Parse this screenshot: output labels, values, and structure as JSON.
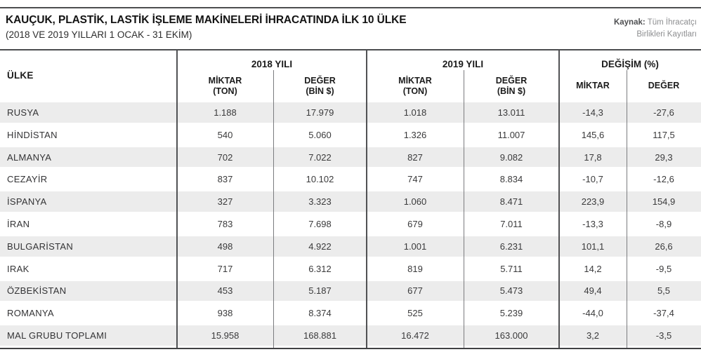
{
  "page": {
    "title": "KAUÇUK, PLASTİK, LASTİK İŞLEME MAKİNELERİ İHRACATINDA İLK 10 ÜLKE",
    "subtitle": "(2018 VE 2019 YILLARI 1 OCAK - 31 EKİM)",
    "source_label": "Kaynak:",
    "source_line1": " Tüm İhracatçı",
    "source_line2": "Birlikleri Kayıtları"
  },
  "colors": {
    "rule_dark": "#4c4d4f",
    "divider_long": "#515254",
    "divider_short": "#7b7c7f",
    "row_stripe": "#ececec",
    "text_dark": "#1b1b1b",
    "text_body": "#3a3a3b",
    "source_gray": "#8d8e90"
  },
  "table": {
    "country_header": "ÜLKE",
    "groups": [
      {
        "label": "2018 YILI",
        "sub1": {
          "l1": "MİKTAR",
          "l2": "(TON)"
        },
        "sub2": {
          "l1": "DEĞER",
          "l2": "(BİN $)"
        }
      },
      {
        "label": "2019 YILI",
        "sub1": {
          "l1": "MİKTAR",
          "l2": "(TON)"
        },
        "sub2": {
          "l1": "DEĞER",
          "l2": "(BİN $)"
        }
      },
      {
        "label": "DEĞİŞİM (%)",
        "sub1": {
          "l1": "MİKTAR",
          "l2": ""
        },
        "sub2": {
          "l1": "DEĞER",
          "l2": ""
        }
      }
    ],
    "rows": [
      {
        "country": "RUSYA",
        "values": [
          "1.188",
          "17.979",
          "1.018",
          "13.011",
          "-14,3",
          "-27,6"
        ]
      },
      {
        "country": "HİNDİSTAN",
        "values": [
          "540",
          "5.060",
          "1.326",
          "11.007",
          "145,6",
          "117,5"
        ]
      },
      {
        "country": "ALMANYA",
        "values": [
          "702",
          "7.022",
          "827",
          "9.082",
          "17,8",
          "29,3"
        ]
      },
      {
        "country": "CEZAYİR",
        "values": [
          "837",
          "10.102",
          "747",
          "8.834",
          "-10,7",
          "-12,6"
        ]
      },
      {
        "country": "İSPANYA",
        "values": [
          "327",
          "3.323",
          "1.060",
          "8.471",
          "223,9",
          "154,9"
        ]
      },
      {
        "country": "İRAN",
        "values": [
          "783",
          "7.698",
          "679",
          "7.011",
          "-13,3",
          "-8,9"
        ]
      },
      {
        "country": "BULGARİSTAN",
        "values": [
          "498",
          "4.922",
          "1.001",
          "6.231",
          "101,1",
          "26,6"
        ]
      },
      {
        "country": "IRAK",
        "values": [
          "717",
          "6.312",
          "819",
          "5.711",
          "14,2",
          "-9,5"
        ]
      },
      {
        "country": "ÖZBEKİSTAN",
        "values": [
          "453",
          "5.187",
          "677",
          "5.473",
          "49,4",
          "5,5"
        ]
      },
      {
        "country": "ROMANYA",
        "values": [
          "938",
          "8.374",
          "525",
          "5.239",
          "-44,0",
          "-37,4"
        ]
      },
      {
        "country": "MAL GRUBU TOPLAMI",
        "values": [
          "15.958",
          "168.881",
          "16.472",
          "163.000",
          "3,2",
          "-3,5"
        ]
      }
    ]
  },
  "chart_data": {
    "type": "table",
    "title": "KAUÇUK, PLASTİK, LASTİK İŞLEME MAKİNELERİ İHRACATINDA İLK 10 ÜLKE (2018 VE 2019 YILLARI 1 OCAK - 31 EKİM)",
    "columns": [
      "ÜLKE",
      "2018 MİKTAR (TON)",
      "2018 DEĞER (BİN $)",
      "2019 MİKTAR (TON)",
      "2019 DEĞER (BİN $)",
      "DEĞİŞİM MİKTAR (%)",
      "DEĞİŞİM DEĞER (%)"
    ],
    "rows": [
      [
        "RUSYA",
        1188,
        17979,
        1018,
        13011,
        -14.3,
        -27.6
      ],
      [
        "HİNDİSTAN",
        540,
        5060,
        1326,
        11007,
        145.6,
        117.5
      ],
      [
        "ALMANYA",
        702,
        7022,
        827,
        9082,
        17.8,
        29.3
      ],
      [
        "CEZAYİR",
        837,
        10102,
        747,
        8834,
        -10.7,
        -12.6
      ],
      [
        "İSPANYA",
        327,
        3323,
        1060,
        8471,
        223.9,
        154.9
      ],
      [
        "İRAN",
        783,
        7698,
        679,
        7011,
        -13.3,
        -8.9
      ],
      [
        "BULGARİSTAN",
        498,
        4922,
        1001,
        6231,
        101.1,
        26.6
      ],
      [
        "IRAK",
        717,
        6312,
        819,
        5711,
        14.2,
        -9.5
      ],
      [
        "ÖZBEKİSTAN",
        453,
        5187,
        677,
        5473,
        49.4,
        5.5
      ],
      [
        "ROMANYA",
        938,
        8374,
        525,
        5239,
        -44.0,
        -37.4
      ],
      [
        "MAL GRUBU TOPLAMI",
        15958,
        168881,
        16472,
        163000,
        3.2,
        -3.5
      ]
    ],
    "source": "Kaynak: Tüm İhracatçı Birlikleri Kayıtları"
  }
}
